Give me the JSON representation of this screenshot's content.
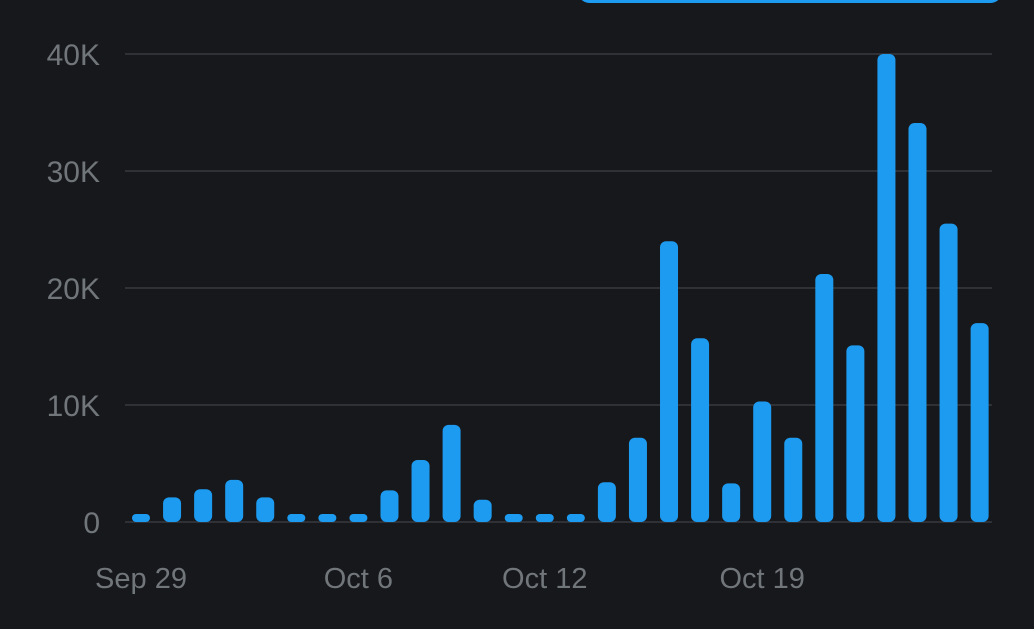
{
  "colors": {
    "background": "#17181c",
    "bar": "#1d9bf0",
    "grid": "#2f3136",
    "tick_text": "#71767b"
  },
  "chart_data": {
    "type": "bar",
    "title": "",
    "xlabel": "",
    "ylabel": "",
    "ylim": [
      0,
      40000
    ],
    "y_ticks": [
      0,
      10000,
      20000,
      30000,
      40000
    ],
    "y_tick_labels": [
      "0",
      "10K",
      "20K",
      "30K",
      "40K"
    ],
    "x_tick_labels": [
      {
        "label": "Sep 29",
        "index": 0
      },
      {
        "label": "Oct 6",
        "index": 7
      },
      {
        "label": "Oct 12",
        "index": 13
      },
      {
        "label": "Oct 19",
        "index": 20
      }
    ],
    "grid": true,
    "categories": [
      "Sep 29",
      "Sep 30",
      "Oct 1",
      "Oct 2",
      "Oct 3",
      "Oct 4",
      "Oct 5",
      "Oct 6",
      "Oct 7",
      "Oct 8",
      "Oct 9",
      "Oct 10",
      "Oct 11",
      "Oct 12",
      "Oct 13",
      "Oct 14",
      "Oct 15",
      "Oct 16",
      "Oct 17",
      "Oct 18",
      "Oct 19",
      "Oct 20",
      "Oct 21",
      "Oct 22",
      "Oct 23",
      "Oct 24",
      "Oct 25",
      "Oct 26"
    ],
    "values": [
      600,
      2100,
      2800,
      3600,
      2100,
      500,
      200,
      400,
      2700,
      5300,
      8300,
      1900,
      500,
      300,
      400,
      3400,
      7200,
      24000,
      15700,
      3300,
      10300,
      7200,
      21200,
      15100,
      40000,
      34100,
      25500,
      17000
    ]
  }
}
